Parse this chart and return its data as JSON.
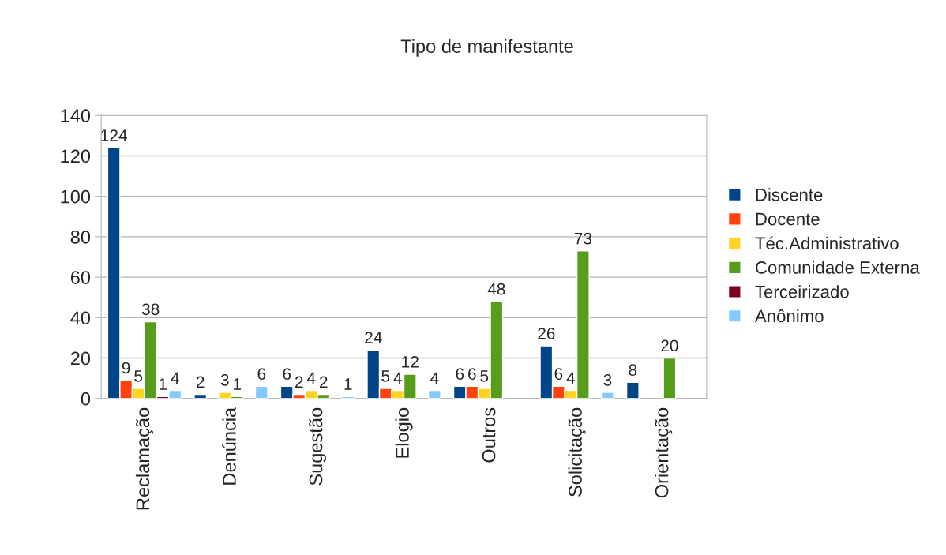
{
  "chart_data": {
    "type": "bar",
    "title": "Tipo de manifestante",
    "categories": [
      "Reclamação",
      "Denúncia",
      "Sugestão",
      "Elogio",
      "Outros",
      "Solicitação",
      "Orientação"
    ],
    "series": [
      {
        "name": "Discente",
        "color": "#004586",
        "values": [
          124,
          2,
          6,
          24,
          6,
          26,
          8
        ]
      },
      {
        "name": "Docente",
        "color": "#ff420e",
        "values": [
          9,
          null,
          2,
          5,
          6,
          6,
          null
        ]
      },
      {
        "name": "Téc.Administrativo",
        "color": "#ffd320",
        "values": [
          5,
          3,
          4,
          4,
          5,
          4,
          null
        ]
      },
      {
        "name": "Comunidade Externa",
        "color": "#579d1c",
        "values": [
          38,
          1,
          2,
          12,
          48,
          73,
          20
        ]
      },
      {
        "name": "Terceirizado",
        "color": "#7e0021",
        "values": [
          1,
          null,
          null,
          null,
          null,
          null,
          null
        ]
      },
      {
        "name": "Anônimo",
        "color": "#83caff",
        "values": [
          4,
          6,
          1,
          4,
          null,
          3,
          null
        ]
      }
    ],
    "ylim": [
      0,
      140
    ],
    "yticks": [
      0,
      20,
      40,
      60,
      80,
      100,
      120,
      140
    ],
    "grid": "y",
    "legend": "right",
    "data_labels": true
  }
}
